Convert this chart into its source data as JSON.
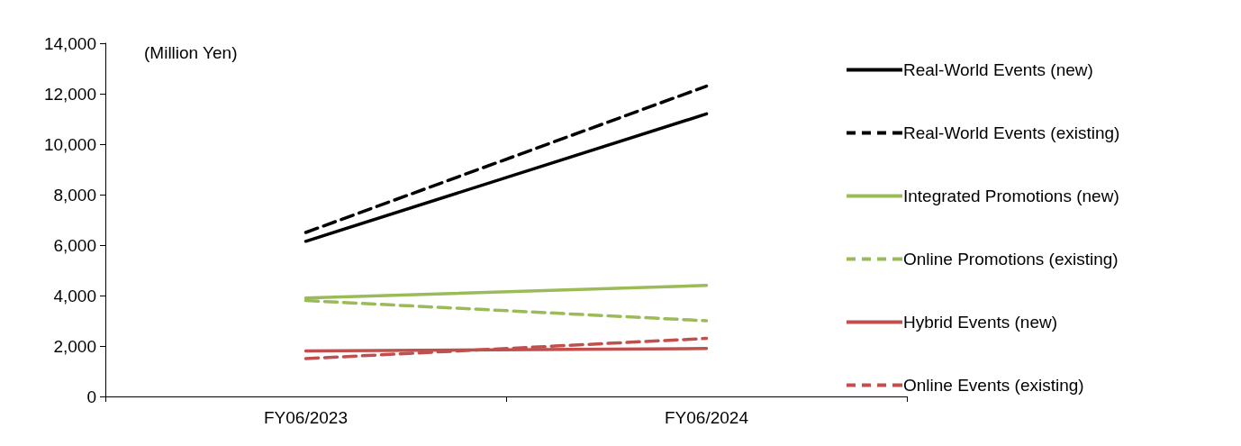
{
  "chart_data": {
    "type": "line",
    "ylabel": "(Million Yen)",
    "categories": [
      "FY06/2023",
      "FY06/2024"
    ],
    "series": [
      {
        "name": "Real-World Events (new)",
        "color": "#000000",
        "line_style": "solid",
        "values": [
          6150,
          11200
        ]
      },
      {
        "name": "Real-World Events (existing)",
        "color": "#000000",
        "line_style": "dashed",
        "values": [
          6500,
          12300
        ]
      },
      {
        "name": "Integrated Promotions (new)",
        "color": "#9bbb59",
        "line_style": "solid",
        "values": [
          3900,
          4400
        ]
      },
      {
        "name": "Online Promotions (existing)",
        "color": "#9bbb59",
        "line_style": "dashed",
        "values": [
          3800,
          3000
        ]
      },
      {
        "name": "Hybrid Events (new)",
        "color": "#c0504d",
        "line_style": "solid",
        "values": [
          1800,
          1900
        ]
      },
      {
        "name": "Online Events (existing)",
        "color": "#c0504d",
        "line_style": "dashed",
        "values": [
          1500,
          2300
        ]
      }
    ],
    "ylim": [
      0,
      14000
    ],
    "yticks": [
      0,
      {
        "value": 2000,
        "label": "2,000"
      },
      {
        "value": 4000,
        "label": "4,000"
      },
      {
        "value": 6000,
        "label": "6,000"
      },
      {
        "value": 8000,
        "label": "8,000"
      },
      {
        "value": 10000,
        "label": "10,000"
      },
      {
        "value": 12000,
        "label": "12,000"
      },
      {
        "value": 14000,
        "label": "14,000"
      }
    ],
    "grid": false,
    "legend": "right",
    "marker": "none"
  }
}
